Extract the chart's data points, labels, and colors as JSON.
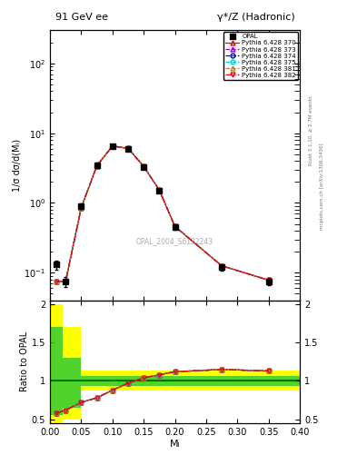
{
  "title_left": "91 GeV ee",
  "title_right": "γ*/Z (Hadronic)",
  "ylabel_main": "1/σ dσ/d(Mₗ)",
  "ylabel_ratio": "Ratio to OPAL",
  "xlabel": "Mₗ",
  "watermark": "OPAL_2004_S6132243",
  "right_label_top": "Rivet 3.1.10, ≥ 2.7M events",
  "right_label_bot": "mcplots.cern.ch [arXiv:1306.3436]",
  "x_data": [
    0.01,
    0.025,
    0.05,
    0.075,
    0.1,
    0.125,
    0.15,
    0.175,
    0.2,
    0.275,
    0.35
  ],
  "opal_y": [
    0.13,
    0.075,
    0.9,
    3.5,
    6.5,
    6.0,
    3.3,
    1.5,
    0.45,
    0.12,
    0.075
  ],
  "opal_yerr": [
    0.02,
    0.012,
    0.09,
    0.25,
    0.35,
    0.35,
    0.2,
    0.1,
    0.04,
    0.012,
    0.008
  ],
  "pythia_y": [
    0.075,
    0.075,
    0.85,
    3.4,
    6.55,
    6.05,
    3.35,
    1.52,
    0.46,
    0.125,
    0.078
  ],
  "ratio_x": [
    0.01,
    0.025,
    0.05,
    0.075,
    0.1,
    0.125,
    0.15,
    0.175,
    0.2,
    0.275,
    0.35
  ],
  "ratio_y": [
    0.58,
    0.62,
    0.72,
    0.78,
    0.88,
    0.97,
    1.04,
    1.08,
    1.12,
    1.15,
    1.13
  ],
  "yellow_steps": {
    "x": [
      0.0,
      0.02,
      0.02,
      0.05,
      0.05,
      0.4
    ],
    "lo": [
      0.45,
      0.45,
      0.5,
      0.5,
      0.88,
      0.88
    ],
    "hi": [
      2.0,
      2.0,
      1.7,
      1.7,
      1.13,
      1.13
    ]
  },
  "green_steps": {
    "x": [
      0.0,
      0.02,
      0.02,
      0.05,
      0.05,
      0.4
    ],
    "lo": [
      0.55,
      0.55,
      0.65,
      0.65,
      0.93,
      0.93
    ],
    "hi": [
      1.7,
      1.7,
      1.3,
      1.3,
      1.07,
      1.07
    ]
  },
  "legend_entries": [
    {
      "label": "OPAL",
      "color": "black",
      "marker": "s",
      "ls": "none"
    },
    {
      "label": "Pythia 6.428 370",
      "color": "#e8000b",
      "marker": "^",
      "ls": "-"
    },
    {
      "label": "Pythia 6.428 373",
      "color": "#9400d3",
      "marker": "^",
      "ls": "--"
    },
    {
      "label": "Pythia 6.428 374",
      "color": "#0000cd",
      "marker": "o",
      "ls": "--"
    },
    {
      "label": "Pythia 6.428 375",
      "color": "#00ced1",
      "marker": "o",
      "ls": "--"
    },
    {
      "label": "Pythia 6.428 381",
      "color": "#b8860b",
      "marker": "^",
      "ls": "--"
    },
    {
      "label": "Pythia 6.428 382",
      "color": "#e8000b",
      "marker": "v",
      "ls": "-."
    }
  ],
  "xlim": [
    0.0,
    0.4
  ],
  "ylim_main": [
    0.04,
    300
  ],
  "ylim_ratio": [
    0.45,
    2.05
  ],
  "yticks_ratio": [
    0.5,
    1.0,
    1.5,
    2.0
  ]
}
